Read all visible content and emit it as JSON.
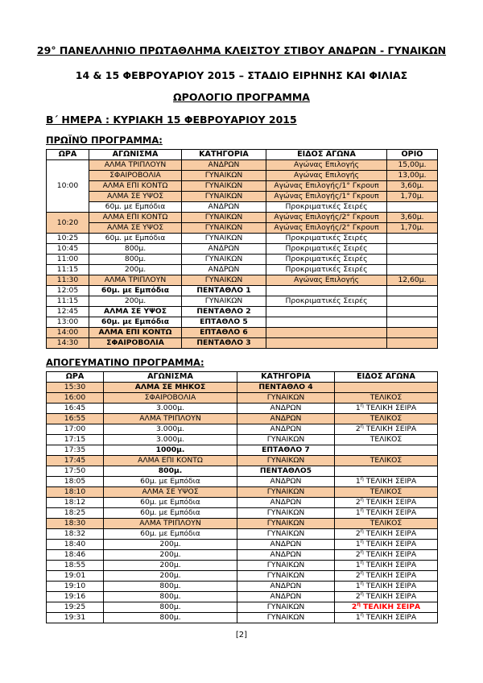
{
  "page": {
    "title1": "29°  ΠΑΝΕΛΛΗΝΙΟ ΠΡΩΤΑΘΛΗΜΑ ΚΛΕΙΣΤΟΥ ΣΤΙΒΟΥ ΑΝΔΡΩΝ - ΓΥΝΑΙΚΩΝ",
    "title2": "14 & 15 ΦΕΒΡΟΥΑΡΙΟΥ 2015 – ΣΤΑΔΙΟ ΕΙΡΗΝΗΣ ΚΑΙ ΦΙΛΙΑΣ",
    "title3": "ΩΡΟΛΟΓΙΟ ΠΡΟΓΡΑΜΜΑ",
    "day_heading": "Β΄ ΗΜΕΡΑ : ΚΥΡΙΑΚΗ 15 ΦΕΒΡΟΥΑΡΙΟΥ 2015",
    "footer": "[2]"
  },
  "colors": {
    "highlight": "#F8CCA4",
    "alert": "#FF0000"
  },
  "morning": {
    "heading": "ΠΡΩΪΝΌ ΠΡΟΓΡΑΜΜΑ:",
    "headers": [
      "ΩΡΑ",
      "ΑΓΩΝΙΣΜΑ",
      "ΚΑΤΗΓΟΡΙΑ",
      "ΕΙΔΟΣ ΑΓΩΝΑ",
      "ΟΡΙΟ"
    ],
    "rows": [
      {
        "time": "10:00",
        "rowspan": 5,
        "thl": false,
        "event": "ΑΛΜΑ ΤΡΙΠΛΟΥΝ",
        "category": "ΑΝΔΡΩΝ",
        "kind": "Αγώνας Επιλογής",
        "limit": "15,00μ.",
        "hl": true
      },
      {
        "event": "ΣΦΑΙΡΟΒΟΛΙΑ",
        "category": "ΓΥΝΑΙΚΩΝ",
        "kind": "Αγώνας Επιλογής",
        "limit": "13,00μ.",
        "hl": true
      },
      {
        "event": "ΑΛΜΑ ΕΠΙ ΚΟΝΤΩ",
        "category": "ΓΥΝΑΙΚΩΝ",
        "kind": "Αγώνας Επιλογής/1° Γκρουπ",
        "limit": "3,60μ.",
        "hl": true
      },
      {
        "event": "ΑΛΜΑ ΣΕ ΥΨΟΣ",
        "category": "ΓΥΝΑΙΚΩΝ",
        "kind": "Αγώνας Επιλογής/1° Γκρουπ",
        "limit": "1,70μ.",
        "hl": true
      },
      {
        "event": "60μ. με Εμπόδια",
        "category": "ΑΝΔΡΩΝ",
        "kind": "Προκριματικές Σειρές",
        "limit": "",
        "hl": false
      },
      {
        "time": "10:20",
        "rowspan": 2,
        "thl": true,
        "event": "ΑΛΜΑ ΕΠΙ ΚΟΝΤΩ",
        "category": "ΓΥΝΑΙΚΩΝ",
        "kind": "Αγώνας Επιλογής/2° Γκρουπ",
        "limit": "3,60μ.",
        "hl": true
      },
      {
        "event": "ΑΛΜΑ ΣΕ ΥΨΟΣ",
        "category": "ΓΥΝΑΙΚΩΝ",
        "kind": "Αγώνας Επιλογής/2° Γκρουπ",
        "limit": "1,70μ.",
        "hl": true
      },
      {
        "time": "10:25",
        "event": "60μ. με Εμπόδια",
        "category": "ΓΥΝΑΙΚΩΝ",
        "kind": "Προκριματικές Σειρές",
        "limit": "",
        "hl": false
      },
      {
        "time": "10:45",
        "event": "800μ.",
        "category": "ΑΝΔΡΩΝ",
        "kind": "Προκριματικές Σειρές",
        "limit": "",
        "hl": false
      },
      {
        "time": "11:00",
        "event": "800μ.",
        "category": "ΓΥΝΑΙΚΩΝ",
        "kind": "Προκριματικές Σειρές",
        "limit": "",
        "hl": false
      },
      {
        "time": "11:15",
        "event": "200μ.",
        "category": "ΑΝΔΡΩΝ",
        "kind": "Προκριματικές Σειρές",
        "limit": "",
        "hl": false
      },
      {
        "time": "11:30",
        "event": "ΑΛΜΑ ΤΡΙΠΛΟΥΝ",
        "category": "ΓΥΝΑΙΚΩΝ",
        "kind": "Αγώνας Επιλογής",
        "limit": "12,60μ.",
        "hl": true
      },
      {
        "time": "12:05",
        "event": "60μ. με Εμπόδια",
        "category": "ΠΕΝΤΑΘΛΟ 1",
        "kind": "",
        "limit": "",
        "hl": false,
        "bold": true
      },
      {
        "time": "11:15",
        "event": "200μ.",
        "category": "ΓΥΝΑΙΚΩΝ",
        "kind": "Προκριματικές Σειρές",
        "limit": "",
        "hl": false
      },
      {
        "time": "12:45",
        "event": "ΑΛΜΑ ΣΕ ΥΨΟΣ",
        "category": "ΠΕΝΤΑΘΛΟ 2",
        "kind": "",
        "limit": "",
        "hl": false,
        "bold": true
      },
      {
        "time": "13:00",
        "event": "60μ. με Εμπόδια",
        "category": "ΕΠΤΑΘΛΟ 5",
        "kind": "",
        "limit": "",
        "hl": false,
        "bold": true
      },
      {
        "time": "14:00",
        "event": "ΑΛΜΑ ΕΠΙ ΚΟΝΤΩ",
        "category": "ΕΠΤΑΘΛΟ 6",
        "kind": "",
        "limit": "",
        "hl": true,
        "bold": true
      },
      {
        "time": "14:30",
        "event": "ΣΦΑΙΡΟΒΟΛΙΑ",
        "category": "ΠΕΝΤΑΘΛΟ 3",
        "kind": "",
        "limit": "",
        "hl": true,
        "bold": true
      }
    ]
  },
  "afternoon": {
    "heading": "ΑΠΟΓΕΥΜΑΤΙΝΟ ΠΡΟΓΡΑΜΜΑ:",
    "headers": [
      "ΩΡΑ",
      "ΑΓΩΝΙΣΜΑ",
      "ΚΑΤΗΓΟΡΙΑ",
      "ΕΙΔΟΣ ΑΓΩΝΑ"
    ],
    "rows": [
      {
        "time": "15:30",
        "event": "ΑΛΜΑ ΣΕ ΜΗΚΟΣ",
        "category": "ΠΕΝΤΑΘΛΟ 4",
        "kind": "",
        "hl": true,
        "bold": true
      },
      {
        "time": "16:00",
        "event": "ΣΦΑΙΡΟΒΟΛΙΑ",
        "category": "ΓΥΝΑΙΚΩΝ",
        "kind": "ΤΕΛΙΚΟΣ",
        "hl": true
      },
      {
        "time": "16:45",
        "event": "3.000μ.",
        "category": "ΑΝΔΡΩΝ",
        "kind": "1η ΤΕΛΙΚΗ ΣΕΙΡΑ",
        "hl": false
      },
      {
        "time": "16:55",
        "event": "ΑΛΜΑ ΤΡΙΠΛΟΥΝ",
        "category": "ΑΝΔΡΩΝ",
        "kind": "ΤΕΛΙΚΟΣ",
        "hl": true
      },
      {
        "time": "17:00",
        "event": "3.000μ.",
        "category": "ΑΝΔΡΩΝ",
        "kind": "2η ΤΕΛΙΚΗ ΣΕΙΡΑ",
        "hl": false
      },
      {
        "time": "17:15",
        "event": "3.000μ.",
        "category": "ΓΥΝΑΙΚΩΝ",
        "kind": "ΤΕΛΙΚΟΣ",
        "hl": false
      },
      {
        "time": "17:35",
        "event": "1000μ.",
        "category": "ΕΠΤΑΘΛΟ 7",
        "kind": "",
        "hl": false,
        "bold": true
      },
      {
        "time": "17:45",
        "event": "ΑΛΜΑ ΕΠΙ ΚΟΝΤΩ",
        "category": "ΓΥΝΑΙΚΩΝ",
        "kind": "ΤΕΛΙΚΟΣ",
        "hl": true
      },
      {
        "time": "17:50",
        "event": "800μ.",
        "category": "ΠΕΝΤΑΘΛΟ5",
        "kind": "",
        "hl": false,
        "bold": true
      },
      {
        "time": "18:05",
        "event": "60μ. με Εμπόδια",
        "category": "ΑΝΔΡΩΝ",
        "kind": "1η ΤΕΛΙΚΗ ΣΕΙΡΑ",
        "hl": false
      },
      {
        "time": "18:10",
        "event": "ΑΛΜΑ ΣΕ ΥΨΟΣ",
        "category": "ΓΥΝΑΙΚΩΝ",
        "kind": "ΤΕΛΙΚΟΣ",
        "hl": true
      },
      {
        "time": "18:12",
        "event": "60μ. με Εμπόδια",
        "category": "ΑΝΔΡΩΝ",
        "kind": "2η ΤΕΛΙΚΗ ΣΕΙΡΑ",
        "hl": false
      },
      {
        "time": "18:25",
        "event": "60μ. με Εμπόδια",
        "category": "ΓΥΝΑΙΚΩΝ",
        "kind": "1η ΤΕΛΙΚΗ ΣΕΙΡΑ",
        "hl": false
      },
      {
        "time": "18:30",
        "event": "ΑΛΜΑ ΤΡΙΠΛΟΥΝ",
        "category": "ΓΥΝΑΙΚΩΝ",
        "kind": "ΤΕΛΙΚΟΣ",
        "hl": true
      },
      {
        "time": "18:32",
        "event": "60μ. με Εμπόδια",
        "category": "ΓΥΝΑΙΚΩΝ",
        "kind": "2η ΤΕΛΙΚΗ ΣΕΙΡΑ",
        "hl": false
      },
      {
        "time": "18:40",
        "event": "200μ.",
        "category": "ΑΝΔΡΩΝ",
        "kind": "1η ΤΕΛΙΚΗ ΣΕΙΡΑ",
        "hl": false
      },
      {
        "time": "18:46",
        "event": "200μ.",
        "category": "ΑΝΔΡΩΝ",
        "kind": "2η ΤΕΛΙΚΗ ΣΕΙΡΑ",
        "hl": false
      },
      {
        "time": "18:55",
        "event": "200μ.",
        "category": "ΓΥΝΑΙΚΩΝ",
        "kind": "1η ΤΕΛΙΚΗ ΣΕΙΡΑ",
        "hl": false
      },
      {
        "time": "19:01",
        "event": "200μ.",
        "category": "ΓΥΝΑΙΚΩΝ",
        "kind": "2η ΤΕΛΙΚΗ ΣΕΙΡΑ",
        "hl": false
      },
      {
        "time": "19:10",
        "event": "800μ.",
        "category": "ΑΝΔΡΩΝ",
        "kind": "1η ΤΕΛΙΚΗ ΣΕΙΡΑ",
        "hl": false
      },
      {
        "time": "19:16",
        "event": "800μ.",
        "category": "ΑΝΔΡΩΝ",
        "kind": "2η ΤΕΛΙΚΗ ΣΕΙΡΑ",
        "hl": false
      },
      {
        "time": "19:25",
        "event": "800μ.",
        "category": "ΓΥΝΑΙΚΩΝ",
        "kind": "2η ΤΕΛΙΚΗ ΣΕΙΡΑ",
        "hl": false,
        "kind_red": true
      },
      {
        "time": "19:31",
        "event": "800μ.",
        "category": "ΓΥΝΑΙΚΩΝ",
        "kind": "1η ΤΕΛΙΚΗ ΣΕΙΡΑ",
        "hl": false
      }
    ]
  }
}
